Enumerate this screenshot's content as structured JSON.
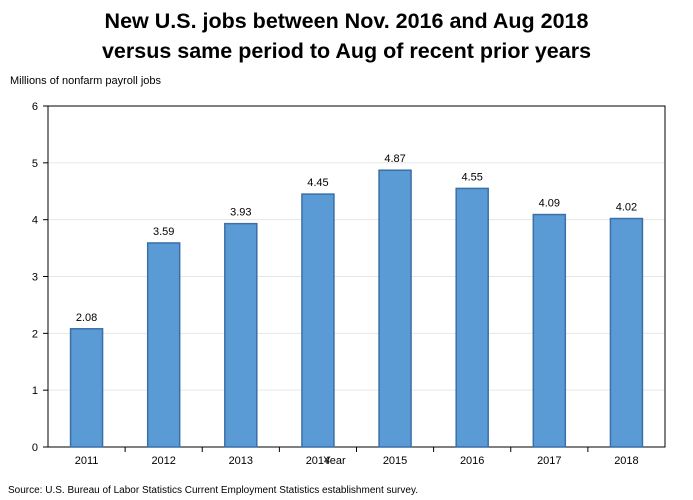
{
  "title_line1": "New U.S. jobs between Nov. 2016 and Aug 2018",
  "title_line2": "versus same period to Aug of recent prior years",
  "source": "Source: U.S. Bureau of Labor Statistics Current Employment Statistics establishment survey.",
  "colors": {
    "bar": "#5b9bd5",
    "bar_edge": "#3a6fa8",
    "axis": "#000000",
    "grid": "#e6e6e6"
  },
  "chart_data": {
    "type": "bar",
    "categories": [
      "2011",
      "2012",
      "2013",
      "2014",
      "2015",
      "2016",
      "2017",
      "2018"
    ],
    "values": [
      2.08,
      3.59,
      3.93,
      4.45,
      4.87,
      4.55,
      4.09,
      4.02
    ],
    "data_labels": [
      "2.08",
      "3.59",
      "3.93",
      "4.45",
      "4.87",
      "4.55",
      "4.09",
      "4.02"
    ],
    "ylabel": "Millions of nonfarm payroll jobs",
    "xlabel": "Year",
    "ylim": [
      0,
      6
    ],
    "yticks": [
      "0",
      "1",
      "2",
      "3",
      "4",
      "5",
      "6"
    ],
    "grid": true,
    "legend": false
  }
}
